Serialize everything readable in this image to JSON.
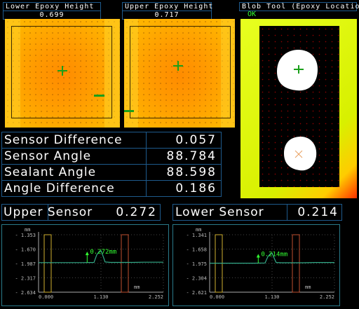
{
  "top_panels": {
    "lower_epoxy": {
      "title": "Lower Epoxy Height",
      "value": "0.699"
    },
    "upper_epoxy": {
      "title": "Upper Epoxy Height",
      "value": "0.717"
    },
    "blob_tool": {
      "title": "Blob Tool (Epoxy Location)",
      "status": "OK"
    }
  },
  "metrics": [
    {
      "label": "Sensor Difference",
      "value": "0.057"
    },
    {
      "label": "Sensor Angle",
      "value": "88.784"
    },
    {
      "label": "Sealant Angle",
      "value": "88.598"
    },
    {
      "label": "Angle Difference",
      "value": "0.186"
    }
  ],
  "sensors": {
    "upper": {
      "label": "Upper Sensor",
      "value": "0.272"
    },
    "lower": {
      "label": "Lower Sensor",
      "value": "0.214"
    }
  },
  "chart_data": [
    {
      "type": "line",
      "series_annotation": "0.272mm",
      "ylabel": "mm",
      "xlabel": "mm",
      "yticks": [
        "1.353",
        "1.670",
        "1.987",
        "2.317",
        "2.634"
      ],
      "xticks": [
        "0.000",
        "1.130",
        "2.252"
      ],
      "xlim": [
        0.0,
        2.252
      ],
      "ylim": [
        1.353,
        2.634
      ],
      "x": [
        0.0,
        0.2,
        0.4,
        0.6,
        0.8,
        1.0,
        1.05,
        1.1,
        1.13,
        1.17,
        1.2,
        1.3,
        1.5,
        1.7,
        1.9,
        2.1,
        2.252
      ],
      "y": [
        1.975,
        1.975,
        1.975,
        1.975,
        1.975,
        1.97,
        1.8,
        1.72,
        1.715,
        1.85,
        1.96,
        1.97,
        1.97,
        1.97,
        1.965,
        1.965,
        1.965
      ],
      "color": "#33aa88"
    },
    {
      "type": "line",
      "series_annotation": "0.214mm",
      "ylabel": "mm",
      "xlabel": "mm",
      "yticks": [
        "1.341",
        "1.658",
        "1.975",
        "2.304",
        "2.621"
      ],
      "xticks": [
        "0.000",
        "1.130",
        "2.252"
      ],
      "xlim": [
        0.0,
        2.252
      ],
      "ylim": [
        1.341,
        2.621
      ],
      "x": [
        0.0,
        0.2,
        0.4,
        0.6,
        0.8,
        1.0,
        1.05,
        1.1,
        1.13,
        1.17,
        1.2,
        1.3,
        1.5,
        1.7,
        1.9,
        2.1,
        2.252
      ],
      "y": [
        1.975,
        1.975,
        1.975,
        1.975,
        1.975,
        1.97,
        1.83,
        1.76,
        1.755,
        1.88,
        1.96,
        1.965,
        1.965,
        1.965,
        1.96,
        1.96,
        1.96
      ],
      "color": "#33aa88"
    }
  ],
  "colors": {
    "border": "#1e5a8c",
    "ok": "#33ff33",
    "chart_border": "#2a7a8a"
  }
}
